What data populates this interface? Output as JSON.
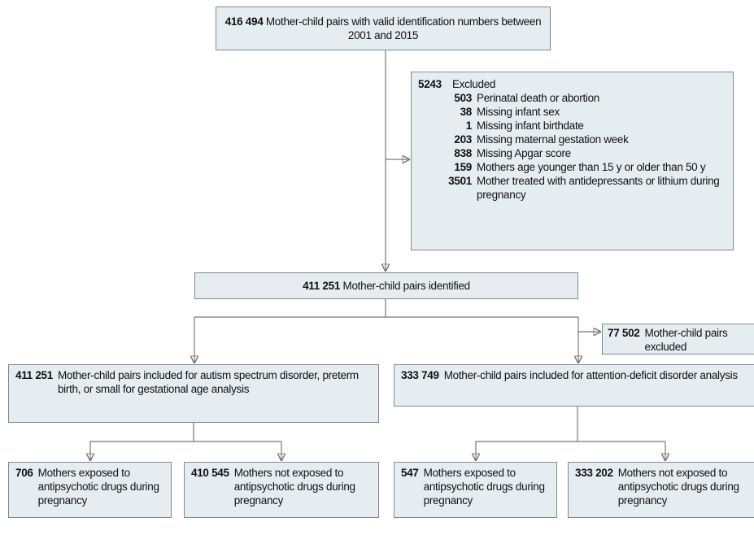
{
  "nodes": [
    {
      "count": "416 494",
      "label": "Mother-child pairs with valid identification numbers between 2001 and 2015"
    },
    {
      "count": "5243",
      "label": "Excluded",
      "items": [
        {
          "count": "503",
          "label": "Perinatal death or abortion"
        },
        {
          "count": "38",
          "label": "Missing infant sex"
        },
        {
          "count": "1",
          "label": "Missing infant birthdate"
        },
        {
          "count": "203",
          "label": "Missing maternal gestation week"
        },
        {
          "count": "838",
          "label": "Missing Apgar score"
        },
        {
          "count": "159",
          "label": "Mothers age younger than 15 y or older than 50 y"
        },
        {
          "count": "3501",
          "label": "Mother treated with antidepressants or lithium during pregnancy"
        }
      ]
    },
    {
      "count": "411 251",
      "label": "Mother-child pairs identified"
    },
    {
      "count": "77 502",
      "label": "Mother-child pairs excluded"
    },
    {
      "count": "411 251",
      "label": "Mother-child pairs included for autism spectrum disorder, preterm birth, or small for gestational age analysis"
    },
    {
      "count": "333 749",
      "label": "Mother-child pairs included for attention-deficit disorder analysis"
    },
    {
      "count": "706",
      "label": "Mothers exposed to antipsychotic drugs during pregnancy"
    },
    {
      "count": "410 545",
      "label": "Mothers not exposed to antipsychotic drugs during pregnancy"
    },
    {
      "count": "547",
      "label": "Mothers exposed to antipsychotic drugs during pregnancy"
    },
    {
      "count": "333 202",
      "label": "Mothers not exposed to antipsychotic drugs during pregnancy"
    }
  ]
}
